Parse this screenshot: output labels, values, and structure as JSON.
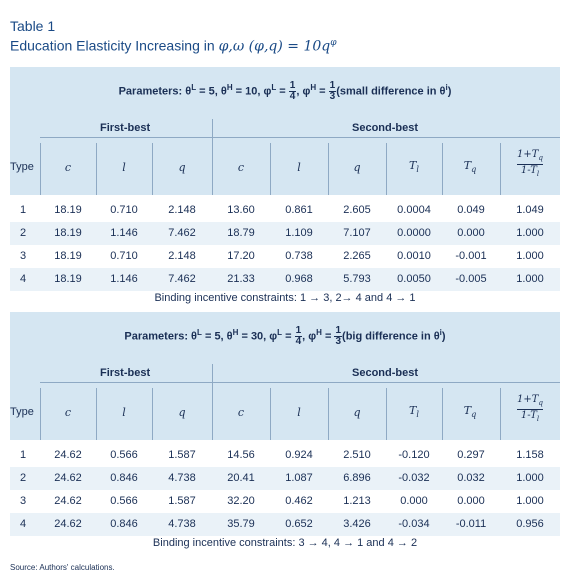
{
  "title": "Table 1",
  "subtitle_text": "Education Elasticity Increasing in",
  "subtitle_math": "φ,ω (φ,q) = 10q",
  "subtitle_exp": "φ",
  "columns": {
    "type": "Type",
    "c": "c",
    "l": "l",
    "q": "q",
    "c2": "c",
    "l2": "l",
    "q2": "q",
    "tl": "T",
    "tl_sub": "l",
    "tq": "T",
    "tq_sub": "q",
    "ratio_num": "1+T",
    "ratio_num_sub": "q",
    "ratio_den": "1-T",
    "ratio_den_sub": "l"
  },
  "panels": [
    {
      "params_prefix": "Parameters: θ",
      "params_L": "L",
      "params_mid1": " = 5, θ",
      "params_H": "H",
      "params_mid2": " = 10, φ",
      "phiL": "L",
      "frac1_num": "1",
      "frac1_den": "4",
      "phiH": "H",
      "frac2_num": "1",
      "frac2_den": "3",
      "params_tail": "(small difference in θ",
      "params_tail_sup": "i",
      "params_close": ")",
      "first_best": "First-best",
      "second_best": "Second-best",
      "rows": [
        [
          "1",
          "18.19",
          "0.710",
          "2.148",
          "13.60",
          "0.861",
          "2.605",
          "0.0004",
          "0.049",
          "1.049"
        ],
        [
          "2",
          "18.19",
          "1.146",
          "7.462",
          "18.79",
          "1.109",
          "7.107",
          "0.0000",
          "0.000",
          "1.000"
        ],
        [
          "3",
          "18.19",
          "0.710",
          "2.148",
          "17.20",
          "0.738",
          "2.265",
          "0.0010",
          "-0.001",
          "1.000"
        ],
        [
          "4",
          "18.19",
          "1.146",
          "7.462",
          "21.33",
          "0.968",
          "5.793",
          "0.0050",
          "-0.005",
          "1.000"
        ]
      ],
      "constraints": "Binding incentive constraints: 1 → 3, 2→ 4 and 4 → 1"
    },
    {
      "params_prefix": "Parameters: θ",
      "params_L": "L",
      "params_mid1": " = 5, θ",
      "params_H": "H",
      "params_mid2": " = 30, φ",
      "phiL": "L",
      "frac1_num": "1",
      "frac1_den": "4",
      "phiH": "H",
      "frac2_num": "1",
      "frac2_den": "3",
      "params_tail": "(big difference in θ",
      "params_tail_sup": "i",
      "params_close": ")",
      "first_best": "First-best",
      "second_best": "Second-best",
      "rows": [
        [
          "1",
          "24.62",
          "0.566",
          "1.587",
          "14.56",
          "0.924",
          "2.510",
          "-0.120",
          "0.297",
          "1.158"
        ],
        [
          "2",
          "24.62",
          "0.846",
          "4.738",
          "20.41",
          "1.087",
          "6.896",
          "-0.032",
          "0.032",
          "1.000"
        ],
        [
          "3",
          "24.62",
          "0.566",
          "1.587",
          "32.20",
          "0.462",
          "1.213",
          "0.000",
          "0.000",
          "1.000"
        ],
        [
          "4",
          "24.62",
          "0.846",
          "4.738",
          "35.79",
          "0.652",
          "3.426",
          "-0.034",
          "-0.011",
          "0.956"
        ]
      ],
      "constraints": "Binding incentive constraints: 3 → 4, 4 → 1 and 4 → 2"
    }
  ],
  "source": "Source: Authors' calculations.",
  "colors": {
    "header_bg": "#d5e6f2",
    "title": "#1a4a86",
    "text": "#1a2f55",
    "rule": "#8ea9c4"
  }
}
